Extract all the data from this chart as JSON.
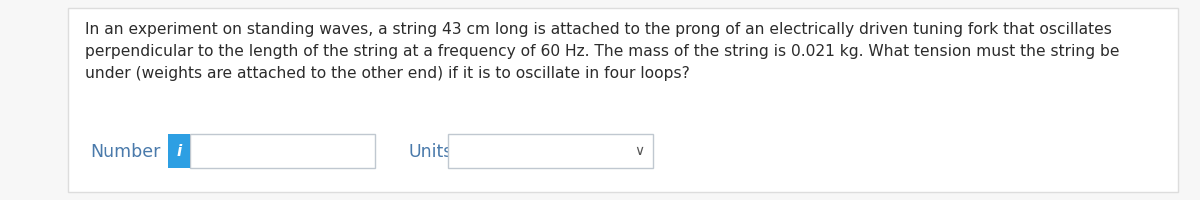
{
  "background_color": "#f7f7f7",
  "content_background": "#ffffff",
  "border_color": "#dddddd",
  "text_paragraph": "In an experiment on standing waves, a string 43 cm long is attached to the prong of an electrically driven tuning fork that oscillates\nperpendicular to the length of the string at a frequency of 60 Hz. The mass of the string is 0.021 kg. What tension must the string be\nunder (weights are attached to the other end) if it is to oscillate in four loops?",
  "text_color": "#2c2c2c",
  "text_fontsize": 11.2,
  "label_number": "Number",
  "label_units": "Units",
  "label_color": "#4a7aab",
  "label_fontsize": 12.5,
  "info_button_color": "#2d9fe3",
  "info_button_text": "i",
  "info_button_text_color": "#ffffff",
  "chevron_color": "#555555",
  "box_edge_color": "#c0c8d0",
  "box_fill_color": "#ffffff"
}
